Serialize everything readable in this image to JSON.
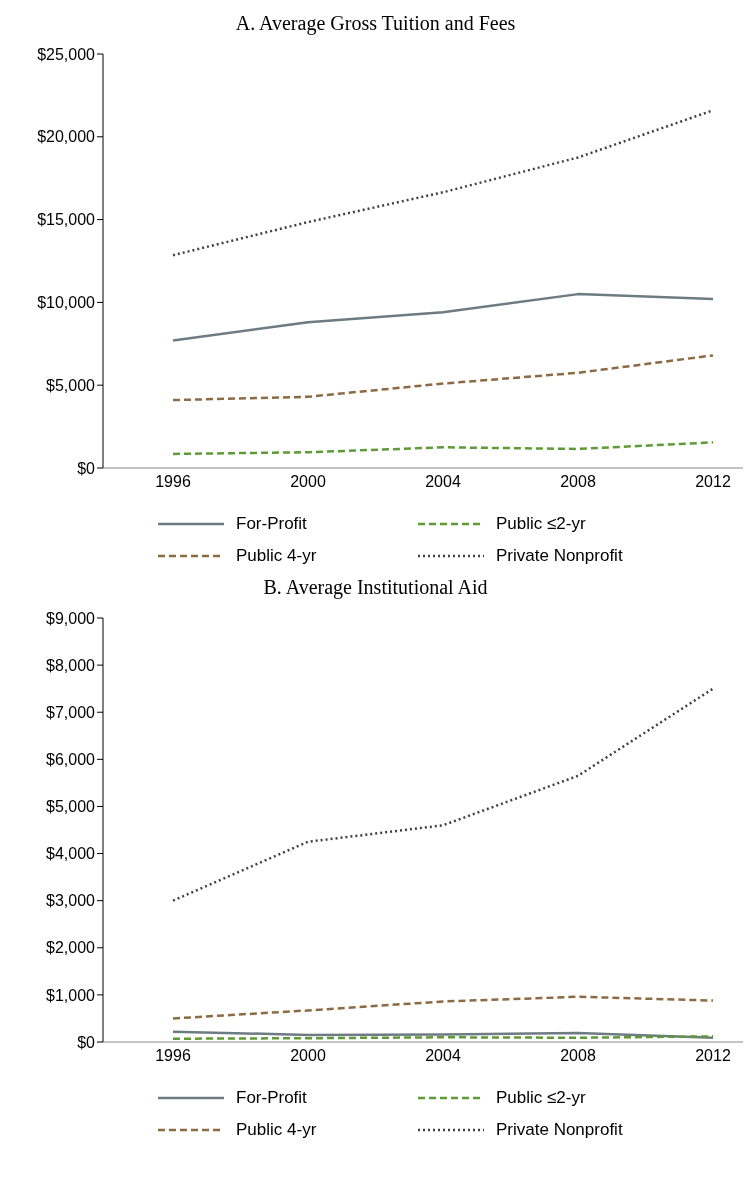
{
  "chart_data": [
    {
      "type": "line",
      "title": "A. Average Gross Tuition and Fees",
      "categories": [
        "1996",
        "2000",
        "2004",
        "2008",
        "2012"
      ],
      "ylim": [
        0,
        25000
      ],
      "yticks": [
        {
          "value": 0,
          "label": "$0"
        },
        {
          "value": 5000,
          "label": "$5,000"
        },
        {
          "value": 10000,
          "label": "$10,000"
        },
        {
          "value": 15000,
          "label": "$15,000"
        },
        {
          "value": 20000,
          "label": "$20,000"
        },
        {
          "value": 25000,
          "label": "$25,000"
        }
      ],
      "grid": false,
      "legend": "bottom",
      "series": [
        {
          "name": "For-Profit",
          "color": "#6d7b83",
          "line_style": "solid",
          "values": [
            7700,
            8800,
            9400,
            10500,
            10200
          ]
        },
        {
          "name": "Public ≤2-yr",
          "color": "#5e9a35",
          "line_style": "dashed",
          "values": [
            850,
            950,
            1250,
            1150,
            1550
          ]
        },
        {
          "name": "Public 4-yr",
          "color": "#8c6a44",
          "line_style": "dashed",
          "values": [
            4100,
            4300,
            5100,
            5750,
            6800
          ]
        },
        {
          "name": "Private Nonprofit",
          "color": "#404040",
          "line_style": "dotted",
          "values": [
            12850,
            14850,
            16650,
            18750,
            21600
          ]
        }
      ]
    },
    {
      "type": "line",
      "title": "B. Average Institutional Aid",
      "categories": [
        "1996",
        "2000",
        "2004",
        "2008",
        "2012"
      ],
      "ylim": [
        0,
        9000
      ],
      "yticks": [
        {
          "value": 0,
          "label": "$0"
        },
        {
          "value": 1000,
          "label": "$1,000"
        },
        {
          "value": 2000,
          "label": "$2,000"
        },
        {
          "value": 3000,
          "label": "$3,000"
        },
        {
          "value": 4000,
          "label": "$4,000"
        },
        {
          "value": 5000,
          "label": "$5,000"
        },
        {
          "value": 6000,
          "label": "$6,000"
        },
        {
          "value": 7000,
          "label": "$7,000"
        },
        {
          "value": 8000,
          "label": "$8,000"
        },
        {
          "value": 9000,
          "label": "$9,000"
        }
      ],
      "grid": false,
      "legend": "bottom",
      "series": [
        {
          "name": "For-Profit",
          "color": "#6d7b83",
          "line_style": "solid",
          "values": [
            220,
            150,
            160,
            190,
            90
          ]
        },
        {
          "name": "Public ≤2-yr",
          "color": "#5e9a35",
          "line_style": "dashed",
          "values": [
            70,
            80,
            100,
            90,
            120
          ]
        },
        {
          "name": "Public 4-yr",
          "color": "#8c6a44",
          "line_style": "dashed",
          "values": [
            500,
            670,
            860,
            960,
            880
          ]
        },
        {
          "name": "Private Nonprofit",
          "color": "#404040",
          "line_style": "dotted",
          "values": [
            3000,
            4250,
            4600,
            5650,
            7500
          ]
        }
      ]
    }
  ]
}
